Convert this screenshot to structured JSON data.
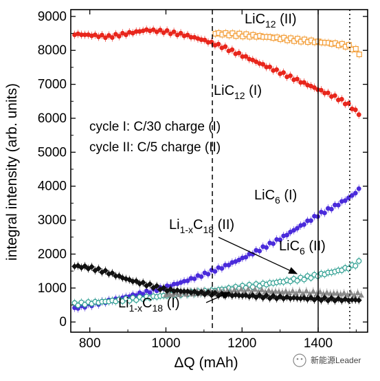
{
  "chart_data": {
    "type": "scatter",
    "title": "",
    "xlabel": "ΔQ (mAh)",
    "ylabel": "integral intensity (arb. units)",
    "xlim": [
      750,
      1530
    ],
    "ylim": [
      -300,
      9200
    ],
    "x_ticks": [
      800,
      1000,
      1200,
      1400
    ],
    "y_ticks": [
      0,
      1000,
      2000,
      3000,
      4000,
      5000,
      6000,
      7000,
      8000,
      9000
    ],
    "grid": false,
    "legend_text": [
      "cycle I:  C/30 charge (I)",
      "cycle II: C/5 charge (II)"
    ],
    "vertical_lines": [
      {
        "x": 1122,
        "style": "dashed"
      },
      {
        "x": 1400,
        "style": "solid"
      },
      {
        "x": 1483,
        "style": "dotted"
      }
    ],
    "annotations": [
      {
        "base": "LiC",
        "sub": "12",
        "tail": " (II)"
      },
      {
        "base": "LiC",
        "sub": "12",
        "tail": " (I)"
      },
      {
        "base": "LiC",
        "sub": "6",
        "tail": " (I)"
      },
      {
        "base": "LiC",
        "sub": "6",
        "tail": " (II)"
      },
      {
        "base": "Li",
        "sub": "1-x",
        "mid": "C",
        "sub2": "18",
        "tail": " (II)"
      },
      {
        "base": "Li",
        "sub": "1-x",
        "mid": "C",
        "sub2": "18",
        "tail": " (I)"
      }
    ],
    "series": [
      {
        "name": "LiC12 (II)",
        "color": "#f39c34",
        "marker": "open-square",
        "x": [
          1130,
          1160,
          1200,
          1240,
          1280,
          1320,
          1360,
          1400,
          1440,
          1480,
          1500,
          1515
        ],
        "y": [
          8500,
          8480,
          8450,
          8420,
          8380,
          8330,
          8290,
          8250,
          8200,
          8130,
          8000,
          7850
        ]
      },
      {
        "name": "LiC12 (I)",
        "color": "#e8261c",
        "marker": "filled-circle",
        "x": [
          760,
          800,
          850,
          900,
          950,
          1000,
          1050,
          1100,
          1150,
          1200,
          1250,
          1300,
          1350,
          1400,
          1450,
          1480,
          1500,
          1510
        ],
        "y": [
          8480,
          8450,
          8400,
          8500,
          8600,
          8550,
          8450,
          8300,
          8100,
          7850,
          7600,
          7350,
          7100,
          6850,
          6600,
          6400,
          6200,
          6100
        ]
      },
      {
        "name": "LiC6 (I)",
        "color": "#4a2bdb",
        "marker": "filled-circle",
        "x": [
          760,
          800,
          850,
          900,
          950,
          1000,
          1050,
          1100,
          1150,
          1200,
          1250,
          1300,
          1350,
          1400,
          1450,
          1480,
          1500,
          1510
        ],
        "y": [
          400,
          500,
          620,
          750,
          880,
          1030,
          1200,
          1400,
          1620,
          1870,
          2150,
          2450,
          2800,
          3150,
          3450,
          3650,
          3820,
          3950
        ]
      },
      {
        "name": "LiC6 (II)",
        "color": "#2a9d8f",
        "marker": "open-circle",
        "x": [
          760,
          800,
          850,
          900,
          950,
          1000,
          1050,
          1100,
          1150,
          1200,
          1250,
          1300,
          1350,
          1400,
          1450,
          1480,
          1500,
          1515
        ],
        "y": [
          520,
          560,
          610,
          660,
          720,
          780,
          840,
          890,
          960,
          1030,
          1100,
          1180,
          1260,
          1380,
          1500,
          1600,
          1700,
          1820
        ]
      },
      {
        "name": "Li1-xC18 (II)",
        "color": "#8a8a8a",
        "marker": "filled-triangle",
        "x": [
          1000,
          1050,
          1100,
          1150,
          1200,
          1250,
          1300,
          1350,
          1400,
          1450,
          1480,
          1500,
          1515
        ],
        "y": [
          800,
          850,
          880,
          900,
          930,
          920,
          890,
          880,
          860,
          840,
          830,
          820,
          830
        ]
      },
      {
        "name": "Li1-xC18 (I)",
        "color": "#111111",
        "marker": "filled-diamond",
        "x": [
          760,
          800,
          850,
          900,
          950,
          1000,
          1050,
          1100,
          1150,
          1200,
          1250,
          1300,
          1350,
          1400,
          1450,
          1480,
          1500,
          1510
        ],
        "y": [
          1650,
          1600,
          1450,
          1250,
          1100,
          950,
          900,
          850,
          800,
          780,
          750,
          720,
          700,
          680,
          660,
          650,
          650,
          650
        ]
      }
    ]
  },
  "watermark": {
    "text": "新能源Leader"
  }
}
